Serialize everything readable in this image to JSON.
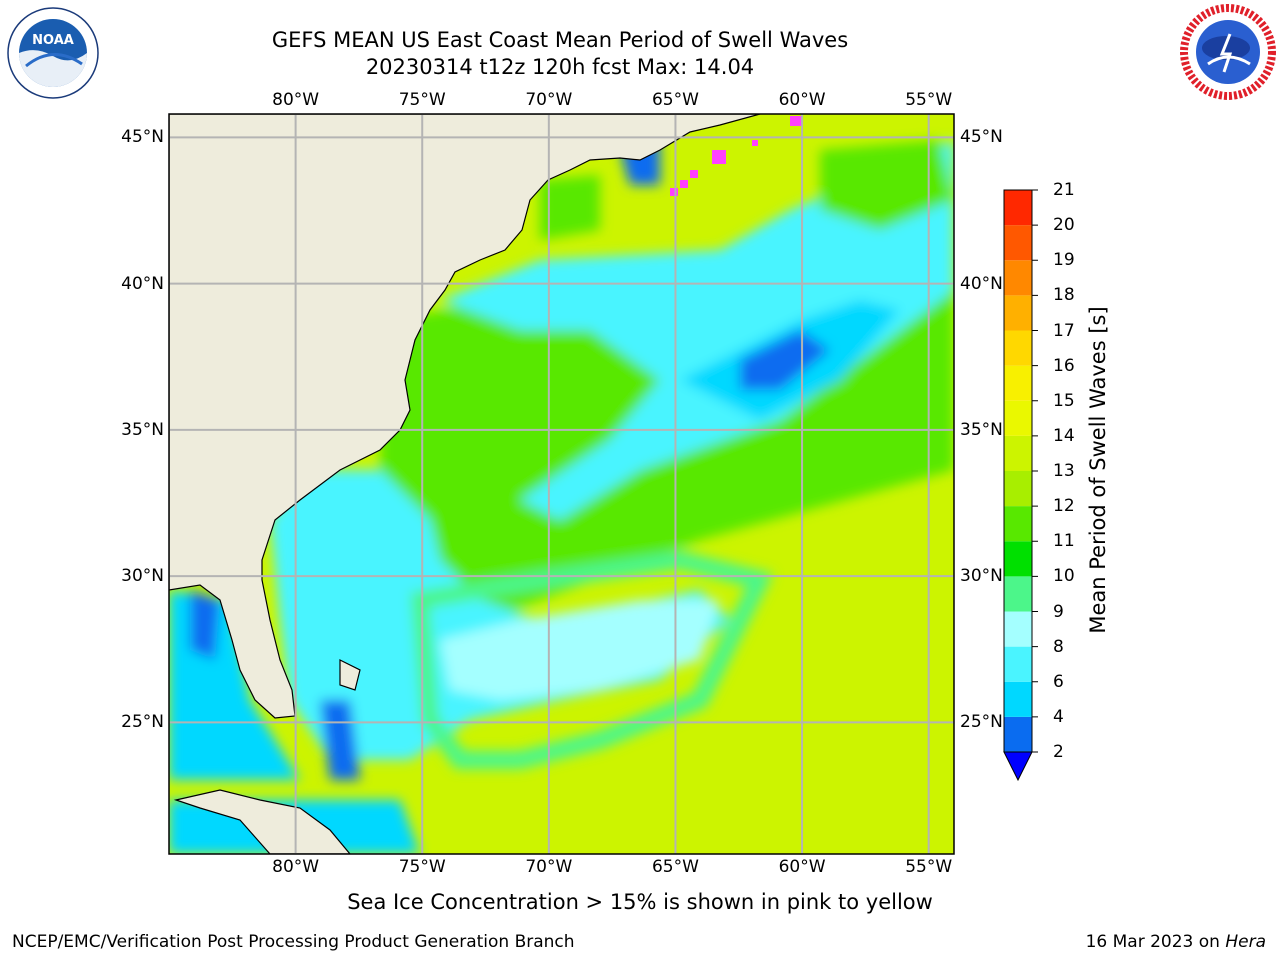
{
  "header": {
    "title": "GEFS MEAN US East Coast Mean Period of Swell Waves",
    "subtitle": "20230314 t12z 120h fcst   Max: 14.04"
  },
  "logos": {
    "left": {
      "icon": "noaa-logo",
      "text": "NOAA"
    },
    "right": {
      "icon": "national-weather-service-logo"
    }
  },
  "map": {
    "extent": {
      "lon": [
        -85,
        -54
      ],
      "lat": [
        20.5,
        45.8
      ]
    },
    "lon_ticks": [
      {
        "lon": -80,
        "label": "80°W"
      },
      {
        "lon": -75,
        "label": "75°W"
      },
      {
        "lon": -70,
        "label": "70°W"
      },
      {
        "lon": -65,
        "label": "65°W"
      },
      {
        "lon": -60,
        "label": "60°W"
      },
      {
        "lon": -55,
        "label": "55°W"
      }
    ],
    "lat_ticks": [
      {
        "lat": 45,
        "label": "45°N"
      },
      {
        "lat": 40,
        "label": "40°N"
      },
      {
        "lat": 35,
        "label": "35°N"
      },
      {
        "lat": 30,
        "label": "30°N"
      },
      {
        "lat": 25,
        "label": "25°N"
      }
    ],
    "max_value": 14.04
  },
  "colorbar": {
    "label": "Mean Period of Swell Waves [s]",
    "levels": [
      2,
      4,
      6,
      8,
      9,
      10,
      11,
      12,
      13,
      14,
      15,
      16,
      17,
      18,
      19,
      20,
      21
    ],
    "colors": [
      "#0a6cf0",
      "#00d8ff",
      "#4af4ff",
      "#a4ffff",
      "#4cf68a",
      "#00e000",
      "#58e800",
      "#a8ee00",
      "#ccf400",
      "#eaf800",
      "#f8f000",
      "#ffd800",
      "#ffb000",
      "#ff8800",
      "#ff5800",
      "#ff2800"
    ],
    "under_color": "#0000ff",
    "extend": "min"
  },
  "colors": {
    "land": "#eeecdc",
    "grid": "#b4b4b4",
    "ice": "#ff40ff"
  },
  "caption": "Sea Ice Concentration > 15% is shown in pink to yellow",
  "footer": {
    "left": "NCEP/EMC/Verification Post Processing Product Generation Branch",
    "date": "16 Mar 2023 on ",
    "machine": "Hera"
  }
}
